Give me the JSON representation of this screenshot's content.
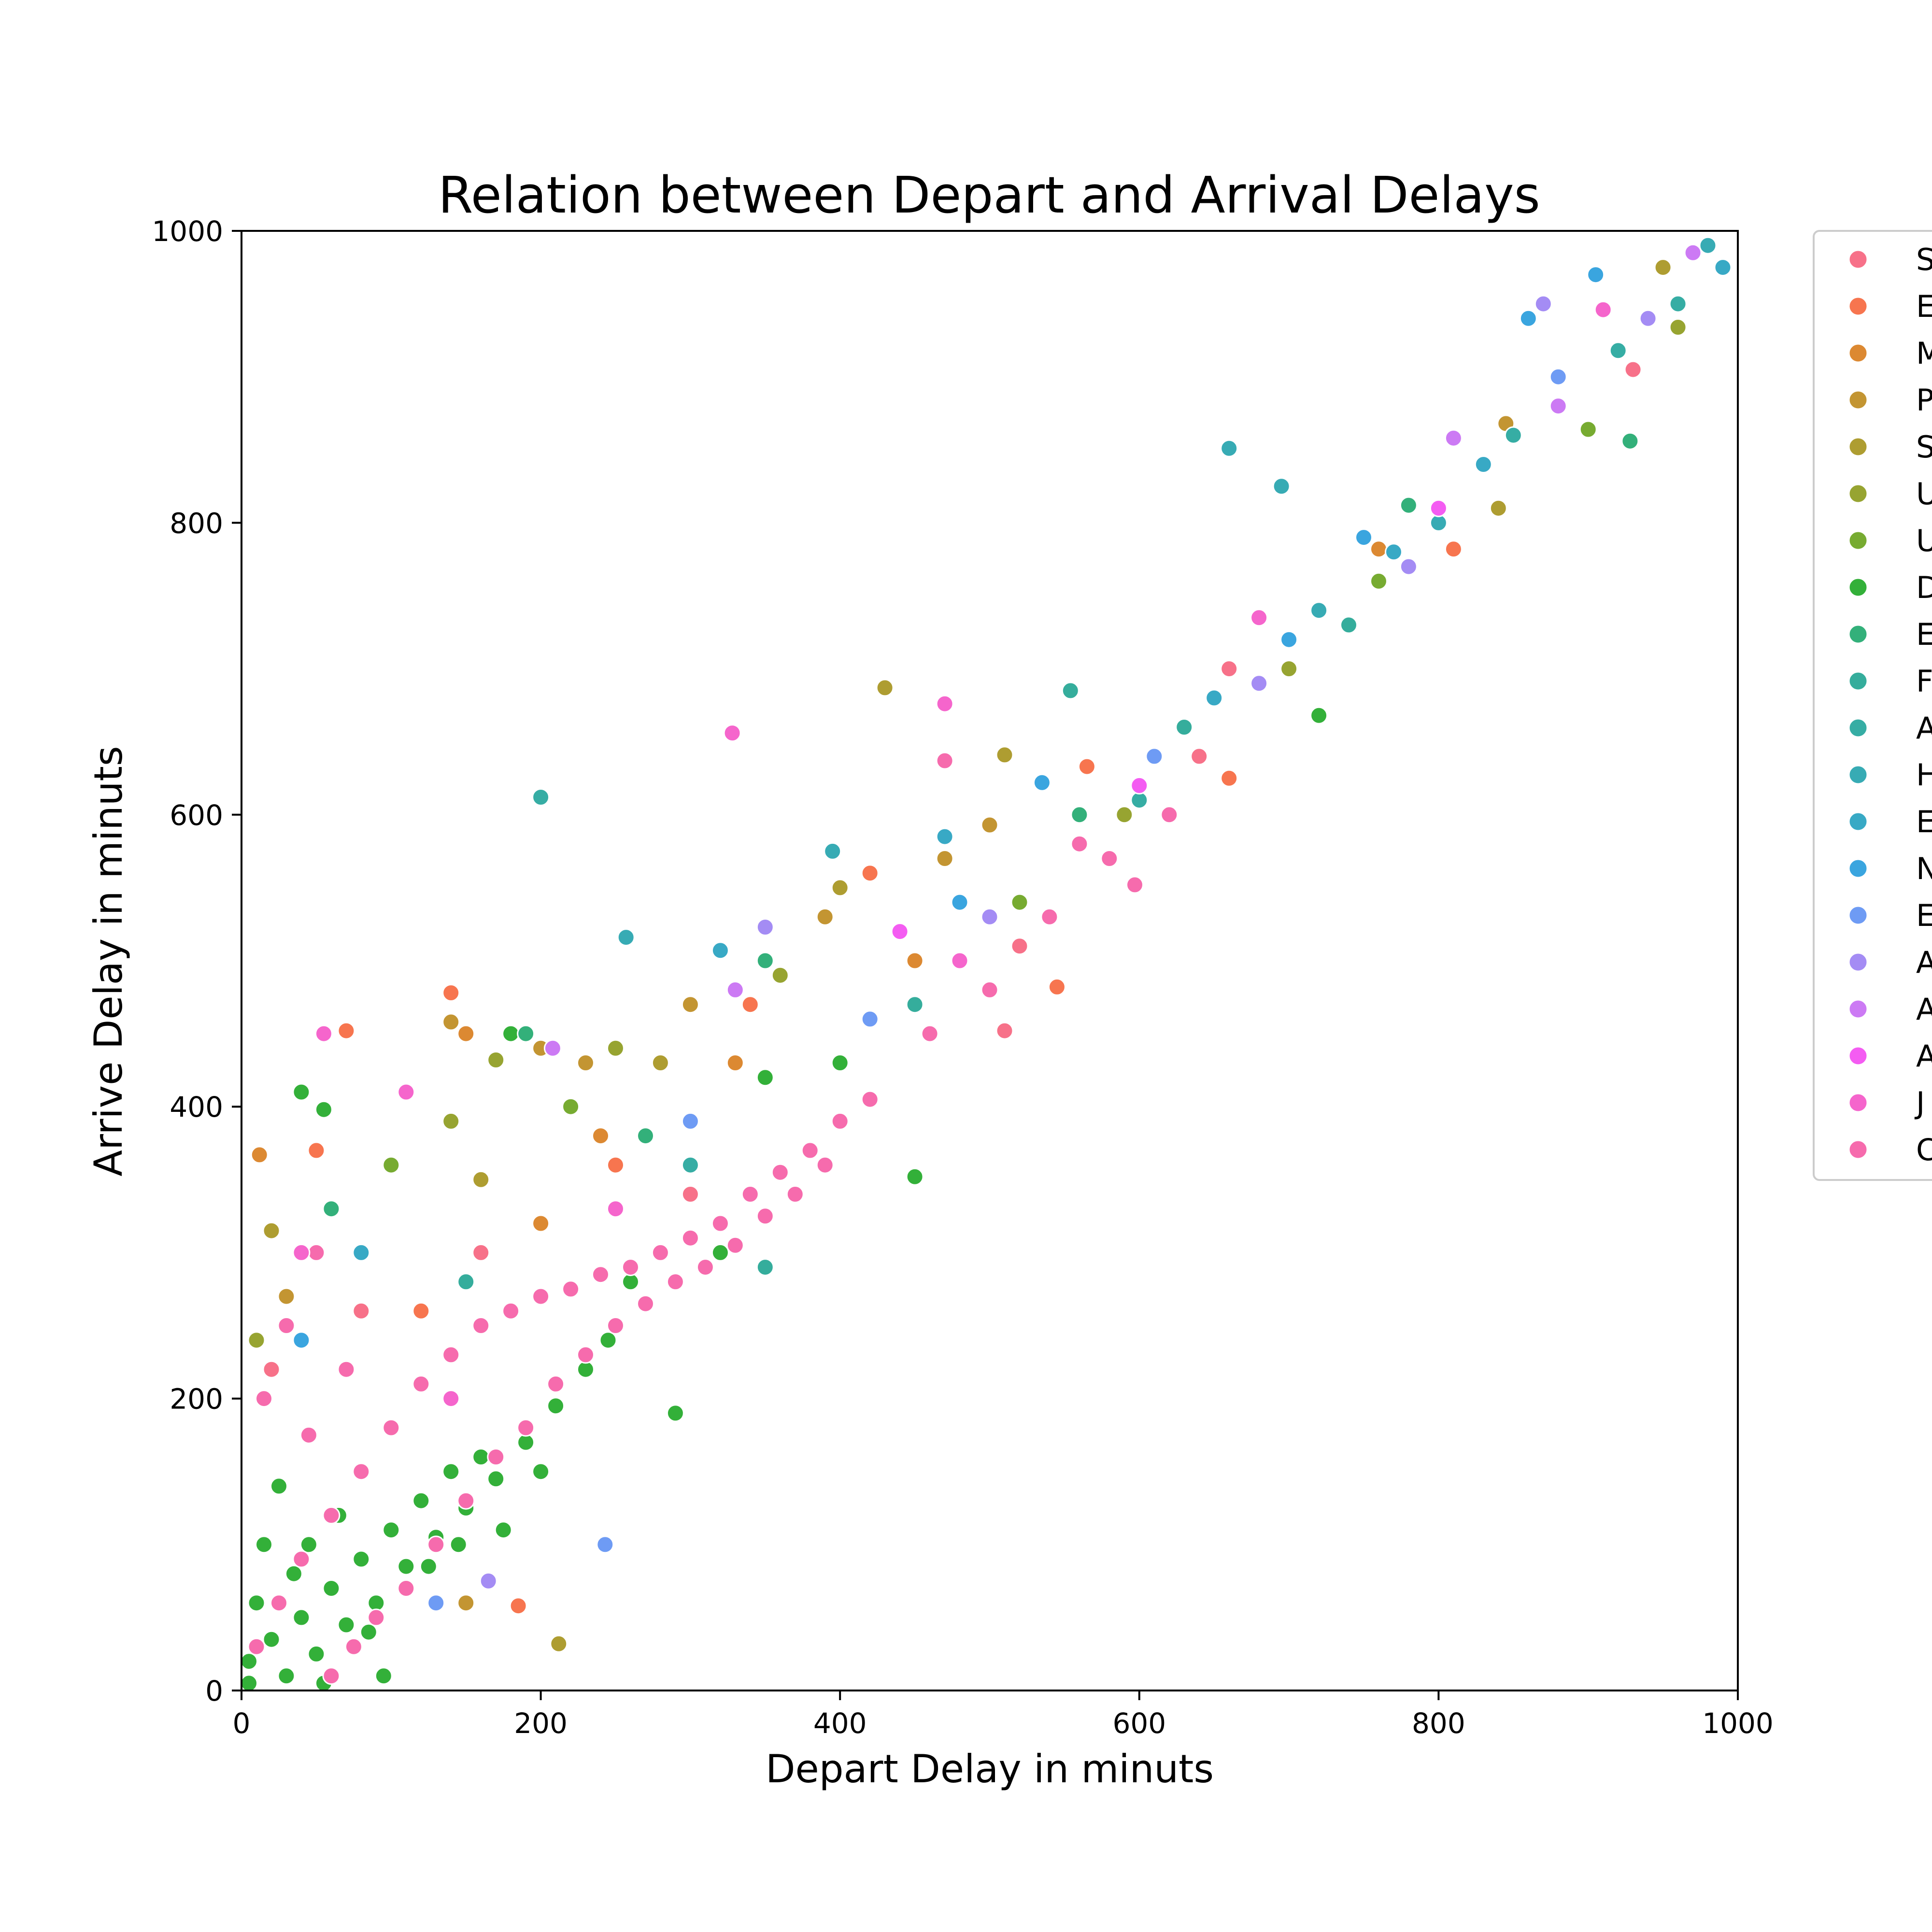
{
  "chart_data": {
    "type": "scatter",
    "title": "Relation between Depart and Arrival Delays",
    "xlabel": "Depart Delay in minuts",
    "ylabel": "Arrive Delay in minuts",
    "xlim": [
      0,
      1000
    ],
    "ylim": [
      0,
      1000
    ],
    "x_ticks": [
      0,
      200,
      400,
      600,
      800,
      1000
    ],
    "y_ticks": [
      0,
      200,
      400,
      600,
      800,
      1000
    ],
    "grid": false,
    "legend_position": "outside-right-top",
    "series": [
      {
        "name": "S",
        "color": "#f77189"
      },
      {
        "name": "E",
        "color": "#f7754f"
      },
      {
        "name": "M",
        "color": "#dc8932"
      },
      {
        "name": "P",
        "color": "#c39532"
      },
      {
        "name": "S",
        "color": "#ae9d31"
      },
      {
        "name": "U",
        "color": "#97a431"
      },
      {
        "name": "U",
        "color": "#77ab31"
      },
      {
        "name": "D",
        "color": "#33b039"
      },
      {
        "name": "E",
        "color": "#33b07a"
      },
      {
        "name": "F",
        "color": "#35ad9c"
      },
      {
        "name": "A",
        "color": "#36ada4"
      },
      {
        "name": "H",
        "color": "#37abb4"
      },
      {
        "name": "E",
        "color": "#38a9c5"
      },
      {
        "name": "N",
        "color": "#3aa5df"
      },
      {
        "name": "E",
        "color": "#6e9bf4"
      },
      {
        "name": "A",
        "color": "#a48cf4"
      },
      {
        "name": "A",
        "color": "#cc7af4"
      },
      {
        "name": "A",
        "color": "#f45cf2"
      },
      {
        "name": "J",
        "color": "#f565cc"
      },
      {
        "name": "C",
        "color": "#f66bad"
      }
    ],
    "points": [
      {
        "s": 7,
        "x": 5,
        "y": 20
      },
      {
        "s": 7,
        "x": 20,
        "y": 35
      },
      {
        "s": 7,
        "x": 40,
        "y": 50
      },
      {
        "s": 7,
        "x": 60,
        "y": 70
      },
      {
        "s": 7,
        "x": 80,
        "y": 90
      },
      {
        "s": 7,
        "x": 100,
        "y": 110
      },
      {
        "s": 7,
        "x": 120,
        "y": 130
      },
      {
        "s": 7,
        "x": 140,
        "y": 150
      },
      {
        "s": 7,
        "x": 160,
        "y": 160
      },
      {
        "s": 7,
        "x": 30,
        "y": 10
      },
      {
        "s": 7,
        "x": 50,
        "y": 25
      },
      {
        "s": 7,
        "x": 70,
        "y": 45
      },
      {
        "s": 7,
        "x": 90,
        "y": 60
      },
      {
        "s": 7,
        "x": 110,
        "y": 85
      },
      {
        "s": 7,
        "x": 130,
        "y": 105
      },
      {
        "s": 7,
        "x": 150,
        "y": 125
      },
      {
        "s": 7,
        "x": 170,
        "y": 145
      },
      {
        "s": 7,
        "x": 190,
        "y": 170
      },
      {
        "s": 7,
        "x": 210,
        "y": 195
      },
      {
        "s": 7,
        "x": 230,
        "y": 220
      },
      {
        "s": 7,
        "x": 10,
        "y": 60
      },
      {
        "s": 7,
        "x": 15,
        "y": 100
      },
      {
        "s": 7,
        "x": 25,
        "y": 140
      },
      {
        "s": 7,
        "x": 45,
        "y": 100
      },
      {
        "s": 7,
        "x": 65,
        "y": 120
      },
      {
        "s": 7,
        "x": 35,
        "y": 80
      },
      {
        "s": 7,
        "x": 85,
        "y": 40
      },
      {
        "s": 7,
        "x": 95,
        "y": 10
      },
      {
        "s": 7,
        "x": 5,
        "y": 5
      },
      {
        "s": 7,
        "x": 55,
        "y": 5
      },
      {
        "s": 7,
        "x": 175,
        "y": 110
      },
      {
        "s": 7,
        "x": 200,
        "y": 150
      },
      {
        "s": 7,
        "x": 125,
        "y": 85
      },
      {
        "s": 7,
        "x": 145,
        "y": 100
      },
      {
        "s": 7,
        "x": 245,
        "y": 240
      },
      {
        "s": 7,
        "x": 260,
        "y": 280
      },
      {
        "s": 7,
        "x": 290,
        "y": 190
      },
      {
        "s": 7,
        "x": 320,
        "y": 300
      },
      {
        "s": 7,
        "x": 40,
        "y": 410
      },
      {
        "s": 7,
        "x": 55,
        "y": 398
      },
      {
        "s": 7,
        "x": 180,
        "y": 450
      },
      {
        "s": 7,
        "x": 450,
        "y": 352
      },
      {
        "s": 7,
        "x": 720,
        "y": 668
      },
      {
        "s": 7,
        "x": 350,
        "y": 420
      },
      {
        "s": 7,
        "x": 400,
        "y": 430
      },
      {
        "s": 19,
        "x": 10,
        "y": 30
      },
      {
        "s": 19,
        "x": 25,
        "y": 60
      },
      {
        "s": 19,
        "x": 40,
        "y": 90
      },
      {
        "s": 19,
        "x": 60,
        "y": 120
      },
      {
        "s": 19,
        "x": 80,
        "y": 150
      },
      {
        "s": 19,
        "x": 100,
        "y": 180
      },
      {
        "s": 19,
        "x": 120,
        "y": 210
      },
      {
        "s": 19,
        "x": 140,
        "y": 230
      },
      {
        "s": 19,
        "x": 160,
        "y": 250
      },
      {
        "s": 19,
        "x": 180,
        "y": 260
      },
      {
        "s": 19,
        "x": 200,
        "y": 270
      },
      {
        "s": 19,
        "x": 220,
        "y": 275
      },
      {
        "s": 19,
        "x": 240,
        "y": 285
      },
      {
        "s": 19,
        "x": 260,
        "y": 290
      },
      {
        "s": 19,
        "x": 280,
        "y": 300
      },
      {
        "s": 19,
        "x": 300,
        "y": 310
      },
      {
        "s": 19,
        "x": 320,
        "y": 320
      },
      {
        "s": 19,
        "x": 340,
        "y": 340
      },
      {
        "s": 19,
        "x": 360,
        "y": 355
      },
      {
        "s": 19,
        "x": 380,
        "y": 370
      },
      {
        "s": 19,
        "x": 400,
        "y": 390
      },
      {
        "s": 19,
        "x": 420,
        "y": 405
      },
      {
        "s": 19,
        "x": 60,
        "y": 10
      },
      {
        "s": 19,
        "x": 75,
        "y": 30
      },
      {
        "s": 19,
        "x": 90,
        "y": 50
      },
      {
        "s": 19,
        "x": 110,
        "y": 70
      },
      {
        "s": 19,
        "x": 130,
        "y": 100
      },
      {
        "s": 19,
        "x": 150,
        "y": 130
      },
      {
        "s": 19,
        "x": 170,
        "y": 160
      },
      {
        "s": 19,
        "x": 190,
        "y": 180
      },
      {
        "s": 19,
        "x": 210,
        "y": 210
      },
      {
        "s": 19,
        "x": 230,
        "y": 230
      },
      {
        "s": 19,
        "x": 250,
        "y": 250
      },
      {
        "s": 19,
        "x": 270,
        "y": 265
      },
      {
        "s": 19,
        "x": 290,
        "y": 280
      },
      {
        "s": 19,
        "x": 310,
        "y": 290
      },
      {
        "s": 19,
        "x": 330,
        "y": 305
      },
      {
        "s": 19,
        "x": 350,
        "y": 325
      },
      {
        "s": 19,
        "x": 370,
        "y": 340
      },
      {
        "s": 19,
        "x": 390,
        "y": 360
      },
      {
        "s": 19,
        "x": 15,
        "y": 200
      },
      {
        "s": 19,
        "x": 30,
        "y": 250
      },
      {
        "s": 19,
        "x": 45,
        "y": 175
      },
      {
        "s": 19,
        "x": 70,
        "y": 220
      },
      {
        "s": 19,
        "x": 50,
        "y": 300
      },
      {
        "s": 19,
        "x": 460,
        "y": 450
      },
      {
        "s": 19,
        "x": 500,
        "y": 480
      },
      {
        "s": 19,
        "x": 540,
        "y": 530
      },
      {
        "s": 19,
        "x": 580,
        "y": 570
      },
      {
        "s": 19,
        "x": 620,
        "y": 600
      },
      {
        "s": 18,
        "x": 328,
        "y": 656
      },
      {
        "s": 18,
        "x": 470,
        "y": 676
      },
      {
        "s": 18,
        "x": 55,
        "y": 450
      },
      {
        "s": 18,
        "x": 110,
        "y": 410
      },
      {
        "s": 18,
        "x": 680,
        "y": 735
      },
      {
        "s": 19,
        "x": 470,
        "y": 637
      },
      {
        "s": 19,
        "x": 597,
        "y": 552
      },
      {
        "s": 19,
        "x": 560,
        "y": 580
      },
      {
        "s": 0,
        "x": 20,
        "y": 220
      },
      {
        "s": 0,
        "x": 80,
        "y": 260
      },
      {
        "s": 0,
        "x": 160,
        "y": 300
      },
      {
        "s": 0,
        "x": 300,
        "y": 340
      },
      {
        "s": 0,
        "x": 510,
        "y": 452
      },
      {
        "s": 0,
        "x": 660,
        "y": 700
      },
      {
        "s": 0,
        "x": 930,
        "y": 905
      },
      {
        "s": 0,
        "x": 520,
        "y": 510
      },
      {
        "s": 0,
        "x": 640,
        "y": 640
      },
      {
        "s": 1,
        "x": 140,
        "y": 478
      },
      {
        "s": 1,
        "x": 70,
        "y": 452
      },
      {
        "s": 1,
        "x": 185,
        "y": 58
      },
      {
        "s": 1,
        "x": 50,
        "y": 370
      },
      {
        "s": 1,
        "x": 340,
        "y": 470
      },
      {
        "s": 1,
        "x": 420,
        "y": 560
      },
      {
        "s": 1,
        "x": 565,
        "y": 633
      },
      {
        "s": 1,
        "x": 660,
        "y": 625
      },
      {
        "s": 1,
        "x": 545,
        "y": 482
      },
      {
        "s": 1,
        "x": 810,
        "y": 782
      },
      {
        "s": 1,
        "x": 250,
        "y": 360
      },
      {
        "s": 1,
        "x": 120,
        "y": 260
      },
      {
        "s": 2,
        "x": 12,
        "y": 367
      },
      {
        "s": 2,
        "x": 150,
        "y": 450
      },
      {
        "s": 2,
        "x": 240,
        "y": 380
      },
      {
        "s": 2,
        "x": 330,
        "y": 430
      },
      {
        "s": 2,
        "x": 450,
        "y": 500
      },
      {
        "s": 2,
        "x": 760,
        "y": 782
      },
      {
        "s": 2,
        "x": 200,
        "y": 320
      },
      {
        "s": 3,
        "x": 140,
        "y": 458
      },
      {
        "s": 3,
        "x": 200,
        "y": 440
      },
      {
        "s": 3,
        "x": 300,
        "y": 470
      },
      {
        "s": 3,
        "x": 390,
        "y": 530
      },
      {
        "s": 3,
        "x": 470,
        "y": 570
      },
      {
        "s": 3,
        "x": 500,
        "y": 593
      },
      {
        "s": 3,
        "x": 150,
        "y": 60
      },
      {
        "s": 3,
        "x": 30,
        "y": 270
      },
      {
        "s": 3,
        "x": 845,
        "y": 868
      },
      {
        "s": 3,
        "x": 230,
        "y": 430
      },
      {
        "s": 4,
        "x": 430,
        "y": 687
      },
      {
        "s": 4,
        "x": 212,
        "y": 32
      },
      {
        "s": 4,
        "x": 510,
        "y": 641
      },
      {
        "s": 4,
        "x": 20,
        "y": 315
      },
      {
        "s": 4,
        "x": 280,
        "y": 430
      },
      {
        "s": 4,
        "x": 400,
        "y": 550
      },
      {
        "s": 4,
        "x": 950,
        "y": 975
      },
      {
        "s": 4,
        "x": 840,
        "y": 810
      },
      {
        "s": 4,
        "x": 160,
        "y": 350
      },
      {
        "s": 5,
        "x": 140,
        "y": 390
      },
      {
        "s": 5,
        "x": 250,
        "y": 440
      },
      {
        "s": 5,
        "x": 360,
        "y": 490
      },
      {
        "s": 5,
        "x": 700,
        "y": 700
      },
      {
        "s": 5,
        "x": 960,
        "y": 934
      },
      {
        "s": 5,
        "x": 10,
        "y": 240
      },
      {
        "s": 5,
        "x": 170,
        "y": 432
      },
      {
        "s": 5,
        "x": 590,
        "y": 600
      },
      {
        "s": 6,
        "x": 100,
        "y": 360
      },
      {
        "s": 6,
        "x": 220,
        "y": 400
      },
      {
        "s": 6,
        "x": 520,
        "y": 540
      },
      {
        "s": 6,
        "x": 900,
        "y": 864
      },
      {
        "s": 6,
        "x": 760,
        "y": 760
      },
      {
        "s": 8,
        "x": 190,
        "y": 450
      },
      {
        "s": 8,
        "x": 350,
        "y": 500
      },
      {
        "s": 8,
        "x": 560,
        "y": 600
      },
      {
        "s": 8,
        "x": 780,
        "y": 812
      },
      {
        "s": 8,
        "x": 928,
        "y": 856
      },
      {
        "s": 8,
        "x": 60,
        "y": 330
      },
      {
        "s": 8,
        "x": 270,
        "y": 380
      },
      {
        "s": 9,
        "x": 554,
        "y": 685
      },
      {
        "s": 9,
        "x": 630,
        "y": 660
      },
      {
        "s": 9,
        "x": 740,
        "y": 730
      },
      {
        "s": 9,
        "x": 450,
        "y": 470
      },
      {
        "s": 9,
        "x": 350,
        "y": 290
      },
      {
        "s": 9,
        "x": 150,
        "y": 280
      },
      {
        "s": 10,
        "x": 200,
        "y": 612
      },
      {
        "s": 10,
        "x": 960,
        "y": 950
      },
      {
        "s": 10,
        "x": 850,
        "y": 860
      },
      {
        "s": 10,
        "x": 600,
        "y": 610
      },
      {
        "s": 10,
        "x": 300,
        "y": 360
      },
      {
        "s": 10,
        "x": 920,
        "y": 918
      },
      {
        "s": 11,
        "x": 257,
        "y": 516
      },
      {
        "s": 11,
        "x": 660,
        "y": 851
      },
      {
        "s": 11,
        "x": 695,
        "y": 825
      },
      {
        "s": 11,
        "x": 395,
        "y": 575
      },
      {
        "s": 11,
        "x": 800,
        "y": 800
      },
      {
        "s": 11,
        "x": 720,
        "y": 740
      },
      {
        "s": 11,
        "x": 980,
        "y": 990
      },
      {
        "s": 12,
        "x": 320,
        "y": 507
      },
      {
        "s": 12,
        "x": 470,
        "y": 585
      },
      {
        "s": 12,
        "x": 650,
        "y": 680
      },
      {
        "s": 12,
        "x": 770,
        "y": 780
      },
      {
        "s": 12,
        "x": 830,
        "y": 840
      },
      {
        "s": 12,
        "x": 990,
        "y": 975
      },
      {
        "s": 12,
        "x": 80,
        "y": 300
      },
      {
        "s": 13,
        "x": 535,
        "y": 622
      },
      {
        "s": 13,
        "x": 860,
        "y": 940
      },
      {
        "s": 13,
        "x": 905,
        "y": 970
      },
      {
        "s": 13,
        "x": 480,
        "y": 540
      },
      {
        "s": 13,
        "x": 700,
        "y": 720
      },
      {
        "s": 13,
        "x": 750,
        "y": 790
      },
      {
        "s": 13,
        "x": 40,
        "y": 240
      },
      {
        "s": 14,
        "x": 243,
        "y": 100
      },
      {
        "s": 14,
        "x": 130,
        "y": 60
      },
      {
        "s": 14,
        "x": 420,
        "y": 460
      },
      {
        "s": 14,
        "x": 610,
        "y": 640
      },
      {
        "s": 14,
        "x": 880,
        "y": 900
      },
      {
        "s": 14,
        "x": 300,
        "y": 390
      },
      {
        "s": 15,
        "x": 165,
        "y": 75
      },
      {
        "s": 15,
        "x": 350,
        "y": 523
      },
      {
        "s": 15,
        "x": 870,
        "y": 950
      },
      {
        "s": 15,
        "x": 780,
        "y": 770
      },
      {
        "s": 15,
        "x": 940,
        "y": 940
      },
      {
        "s": 15,
        "x": 680,
        "y": 690
      },
      {
        "s": 15,
        "x": 500,
        "y": 530
      },
      {
        "s": 16,
        "x": 208,
        "y": 440
      },
      {
        "s": 16,
        "x": 810,
        "y": 858
      },
      {
        "s": 16,
        "x": 970,
        "y": 985
      },
      {
        "s": 16,
        "x": 880,
        "y": 880
      },
      {
        "s": 16,
        "x": 330,
        "y": 480
      },
      {
        "s": 17,
        "x": 440,
        "y": 520
      },
      {
        "s": 17,
        "x": 800,
        "y": 810
      },
      {
        "s": 17,
        "x": 600,
        "y": 620
      },
      {
        "s": 18,
        "x": 40,
        "y": 300
      },
      {
        "s": 18,
        "x": 250,
        "y": 330
      },
      {
        "s": 18,
        "x": 480,
        "y": 500
      },
      {
        "s": 18,
        "x": 910,
        "y": 946
      },
      {
        "s": 18,
        "x": 140,
        "y": 200
      }
    ]
  }
}
